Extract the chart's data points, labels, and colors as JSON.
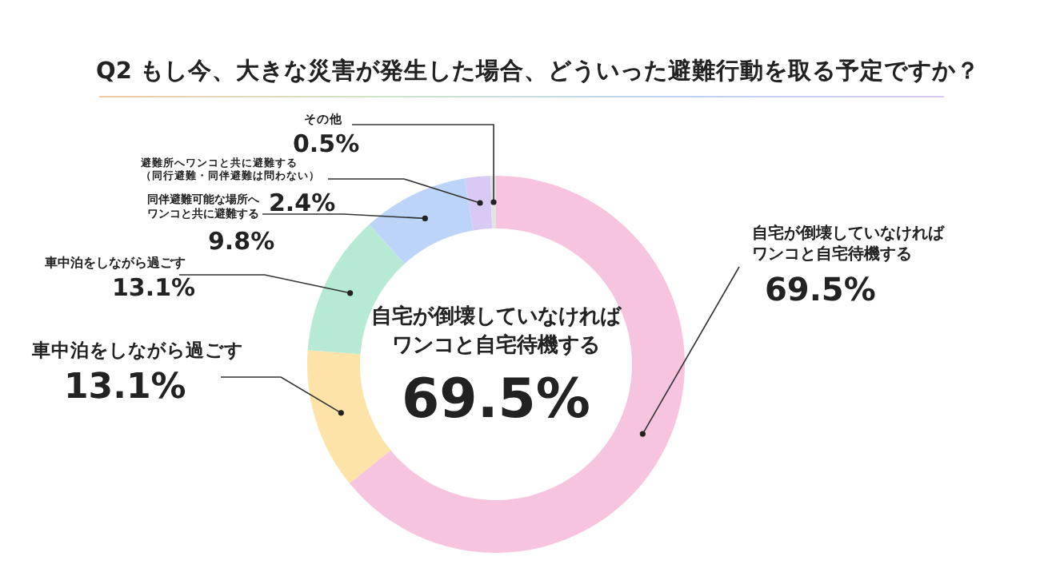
{
  "chart_data": {
    "type": "donut",
    "title": "Q2 もし今、大きな災害が発生した場合、どういった避難行動を取る予定ですか？",
    "categories": [
      "自宅が倒壊していなければワンコと自宅待機する",
      "車中泊をしながら過ごす",
      "車中泊をしながら過ごす",
      "同伴避難可能な場所へワンコと共に避難する",
      "避難所へワンコと共に避難する（同行避難・同伴避難は問わない）",
      "その他"
    ],
    "values": [
      69.5,
      13.1,
      13.1,
      9.8,
      2.4,
      0.5
    ],
    "value_labels": [
      "69.5%",
      "13.1%",
      "13.1%",
      "9.8%",
      "2.4%",
      "0.5%"
    ],
    "colors": [
      "#f7c4df",
      "#fde3a8",
      "#b6ead5",
      "#bcd4f7",
      "#d8c9f5",
      "#e4e4e4"
    ],
    "annotations": [
      "自宅が倒壊していなければワンコと自宅待機する",
      "69.5%"
    ]
  }
}
